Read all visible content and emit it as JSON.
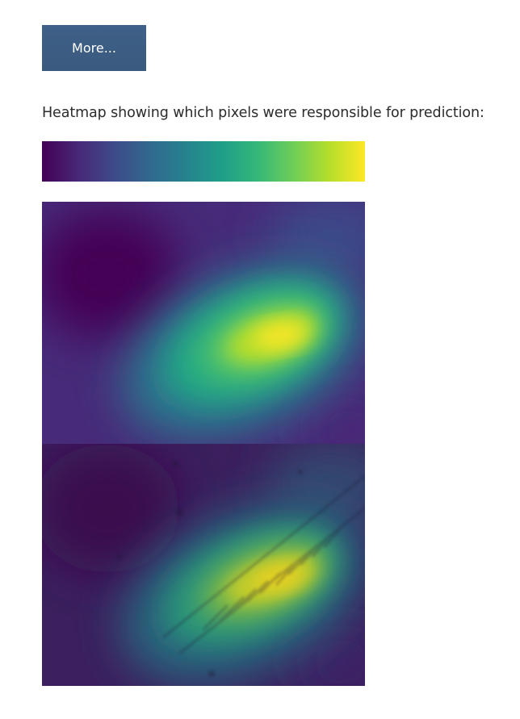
{
  "actions": {
    "more_label": "More..."
  },
  "heatmap_section": {
    "caption": "Heatmap showing which pixels were responsible for prediction:",
    "colorbar": {
      "colormap": "viridis",
      "colors": [
        "#440154",
        "#482777",
        "#3e4a89",
        "#31688e",
        "#26828e",
        "#1f9e89",
        "#35b779",
        "#6ece58",
        "#b5de2b",
        "#fde725"
      ]
    },
    "images": [
      {
        "name": "heatmap-overlay",
        "colormap": "viridis"
      },
      {
        "name": "heatmap-on-photo",
        "colormap": "viridis"
      }
    ]
  }
}
